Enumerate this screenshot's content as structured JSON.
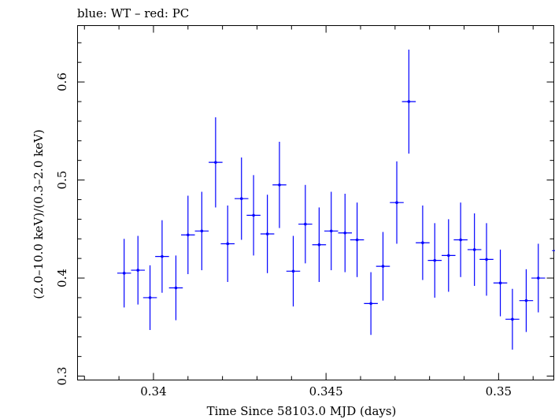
{
  "chart_data": {
    "type": "scatter",
    "title": "blue: WT – red: PC",
    "xlabel": "Time Since 58103.0 MJD (days)",
    "ylabel": "(2.0–10.0 keV)/(0.3–2.0 keV)",
    "xlim": [
      0.3378,
      0.3516
    ],
    "ylim": [
      0.296,
      0.6575
    ],
    "x_ticks": [
      0.34,
      0.345,
      0.35
    ],
    "x_tick_labels": [
      "0.34",
      "0.345",
      "0.35"
    ],
    "y_ticks": [
      0.3,
      0.4,
      0.5,
      0.6
    ],
    "y_tick_labels": [
      "0.3",
      "0.4",
      "0.5",
      "0.6"
    ],
    "grid": false,
    "legend": "none",
    "series": [
      {
        "color": "#0000ff",
        "x_half_width": 0.0002,
        "points": [
          {
            "x": 0.33915,
            "y": 0.405,
            "yerr_low": 0.035,
            "yerr_high": 0.035
          },
          {
            "x": 0.33955,
            "y": 0.408,
            "yerr_low": 0.035,
            "yerr_high": 0.035
          },
          {
            "x": 0.3399,
            "y": 0.38,
            "yerr_low": 0.033,
            "yerr_high": 0.033
          },
          {
            "x": 0.34025,
            "y": 0.422,
            "yerr_low": 0.037,
            "yerr_high": 0.037
          },
          {
            "x": 0.34065,
            "y": 0.39,
            "yerr_low": 0.033,
            "yerr_high": 0.033
          },
          {
            "x": 0.341,
            "y": 0.444,
            "yerr_low": 0.04,
            "yerr_high": 0.04
          },
          {
            "x": 0.3414,
            "y": 0.448,
            "yerr_low": 0.04,
            "yerr_high": 0.04
          },
          {
            "x": 0.3418,
            "y": 0.518,
            "yerr_low": 0.046,
            "yerr_high": 0.046
          },
          {
            "x": 0.34215,
            "y": 0.435,
            "yerr_low": 0.039,
            "yerr_high": 0.039
          },
          {
            "x": 0.34255,
            "y": 0.481,
            "yerr_low": 0.042,
            "yerr_high": 0.042
          },
          {
            "x": 0.3429,
            "y": 0.464,
            "yerr_low": 0.041,
            "yerr_high": 0.041
          },
          {
            "x": 0.3433,
            "y": 0.445,
            "yerr_low": 0.04,
            "yerr_high": 0.04
          },
          {
            "x": 0.34365,
            "y": 0.495,
            "yerr_low": 0.044,
            "yerr_high": 0.044
          },
          {
            "x": 0.34405,
            "y": 0.407,
            "yerr_low": 0.036,
            "yerr_high": 0.036
          },
          {
            "x": 0.3444,
            "y": 0.455,
            "yerr_low": 0.04,
            "yerr_high": 0.04
          },
          {
            "x": 0.3448,
            "y": 0.434,
            "yerr_low": 0.038,
            "yerr_high": 0.038
          },
          {
            "x": 0.34515,
            "y": 0.448,
            "yerr_low": 0.04,
            "yerr_high": 0.04
          },
          {
            "x": 0.34555,
            "y": 0.446,
            "yerr_low": 0.04,
            "yerr_high": 0.04
          },
          {
            "x": 0.3459,
            "y": 0.439,
            "yerr_low": 0.038,
            "yerr_high": 0.038
          },
          {
            "x": 0.3463,
            "y": 0.374,
            "yerr_low": 0.032,
            "yerr_high": 0.032
          },
          {
            "x": 0.34665,
            "y": 0.412,
            "yerr_low": 0.035,
            "yerr_high": 0.035
          },
          {
            "x": 0.34705,
            "y": 0.477,
            "yerr_low": 0.042,
            "yerr_high": 0.042
          },
          {
            "x": 0.3474,
            "y": 0.58,
            "yerr_low": 0.053,
            "yerr_high": 0.053
          },
          {
            "x": 0.3478,
            "y": 0.436,
            "yerr_low": 0.038,
            "yerr_high": 0.038
          },
          {
            "x": 0.34815,
            "y": 0.418,
            "yerr_low": 0.038,
            "yerr_high": 0.038
          },
          {
            "x": 0.34855,
            "y": 0.423,
            "yerr_low": 0.037,
            "yerr_high": 0.037
          },
          {
            "x": 0.3489,
            "y": 0.439,
            "yerr_low": 0.038,
            "yerr_high": 0.038
          },
          {
            "x": 0.3493,
            "y": 0.429,
            "yerr_low": 0.037,
            "yerr_high": 0.037
          },
          {
            "x": 0.34965,
            "y": 0.419,
            "yerr_low": 0.037,
            "yerr_high": 0.037
          },
          {
            "x": 0.35005,
            "y": 0.395,
            "yerr_low": 0.034,
            "yerr_high": 0.034
          },
          {
            "x": 0.3504,
            "y": 0.358,
            "yerr_low": 0.031,
            "yerr_high": 0.031
          },
          {
            "x": 0.3508,
            "y": 0.377,
            "yerr_low": 0.032,
            "yerr_high": 0.032
          },
          {
            "x": 0.35115,
            "y": 0.4,
            "yerr_low": 0.035,
            "yerr_high": 0.035
          },
          {
            "x": 0.35175,
            "y": 0.428,
            "yerr_low": 0.03,
            "yerr_high": 0.03
          }
        ]
      }
    ]
  }
}
